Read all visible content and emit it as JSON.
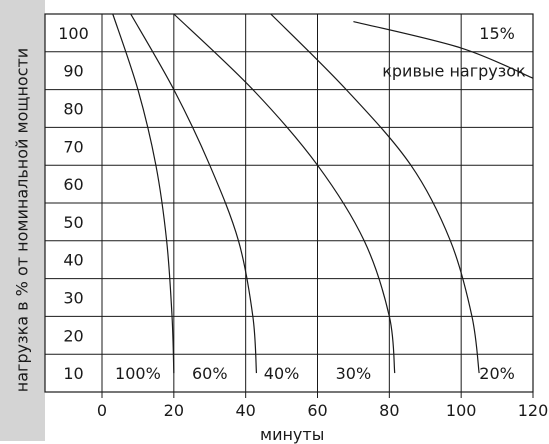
{
  "chart_data": {
    "type": "line",
    "ylabel": "нагрузка в % от номинальной мощности",
    "xlabel": "минуты",
    "x_ticks": [
      "0",
      "20",
      "40",
      "60",
      "80",
      "100",
      "120"
    ],
    "y_ticks": [
      "100",
      "90",
      "80",
      "70",
      "60",
      "50",
      "40",
      "30",
      "20",
      "10"
    ],
    "xlim": [
      0,
      120
    ],
    "ylim": [
      5,
      105
    ],
    "grid": true,
    "annotation": "кривые нагрузок",
    "series": [
      {
        "name": "100%",
        "points": [
          [
            3,
            105
          ],
          [
            10,
            85
          ],
          [
            15,
            65
          ],
          [
            18,
            45
          ],
          [
            19.5,
            25
          ],
          [
            20,
            10
          ]
        ]
      },
      {
        "name": "60%",
        "points": [
          [
            8,
            105
          ],
          [
            20,
            85
          ],
          [
            30,
            65
          ],
          [
            38,
            45
          ],
          [
            42,
            25
          ],
          [
            43,
            10
          ]
        ]
      },
      {
        "name": "40%",
        "points": [
          [
            20,
            105
          ],
          [
            42,
            85
          ],
          [
            60,
            65
          ],
          [
            73,
            45
          ],
          [
            80,
            25
          ],
          [
            81.5,
            10
          ]
        ]
      },
      {
        "name": "30%",
        "points": [
          [
            47,
            105
          ],
          [
            68,
            85
          ],
          [
            86,
            65
          ],
          [
            97,
            45
          ],
          [
            103,
            25
          ],
          [
            105,
            10
          ]
        ]
      },
      {
        "name": "20%",
        "points": [
          [
            70,
            103
          ],
          [
            100,
            96
          ],
          [
            120,
            88
          ]
        ]
      }
    ],
    "series_labels": [
      "100%",
      "60%",
      "40%",
      "30%",
      "20%"
    ],
    "label_15": "15%"
  }
}
